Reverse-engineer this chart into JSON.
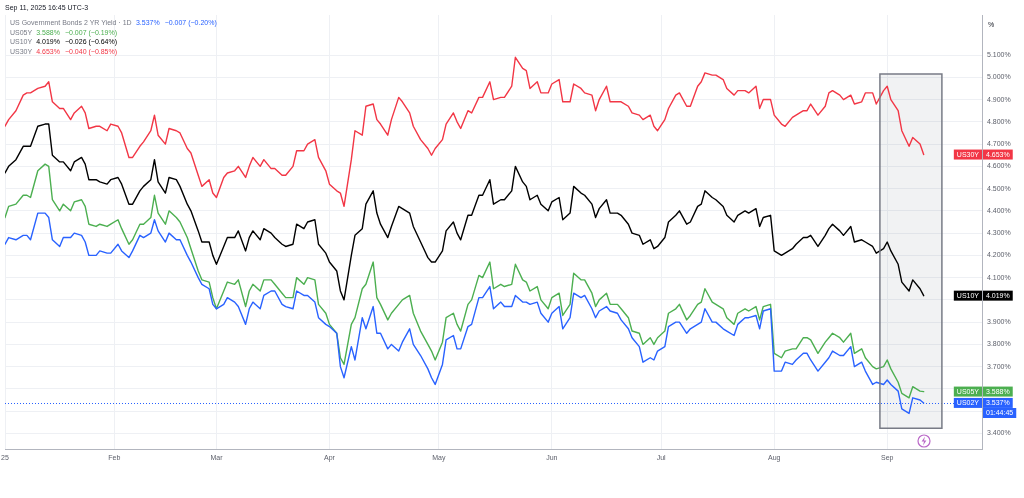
{
  "chart_data": {
    "type": "line",
    "title": "Sep 11, 2025 16:45 UTC-3",
    "ylabel": "%",
    "x": [
      "2025-01-02",
      "2025-01-03",
      "2025-01-05",
      "2025-01-07",
      "2025-01-08",
      "2025-01-09",
      "2025-01-11",
      "2025-01-13",
      "2025-01-14",
      "2025-01-15",
      "2025-01-17",
      "2025-01-18",
      "2025-01-20",
      "2025-01-21",
      "2025-01-23",
      "2025-01-24",
      "2025-01-25",
      "2025-01-27",
      "2025-01-28",
      "2025-01-30",
      "2025-01-31",
      "2025-02-02",
      "2025-02-03",
      "2025-02-05",
      "2025-02-06",
      "2025-02-08",
      "2025-02-09",
      "2025-02-11",
      "2025-02-12",
      "2025-02-13",
      "2025-02-15",
      "2025-02-16",
      "2025-02-18",
      "2025-02-19",
      "2025-02-21",
      "2025-02-22",
      "2025-02-24",
      "2025-02-25",
      "2025-02-27",
      "2025-02-28",
      "2025-03-01",
      "2025-03-03",
      "2025-03-04",
      "2025-03-06",
      "2025-03-07",
      "2025-03-09",
      "2025-03-10",
      "2025-03-11",
      "2025-03-13",
      "2025-03-14",
      "2025-03-16",
      "2025-03-17",
      "2025-03-19",
      "2025-03-20",
      "2025-03-22",
      "2025-03-23",
      "2025-03-25",
      "2025-03-26",
      "2025-03-28",
      "2025-03-29",
      "2025-03-31",
      "2025-04-01",
      "2025-04-03",
      "2025-04-04",
      "2025-04-05",
      "2025-04-07",
      "2025-04-08",
      "2025-04-10",
      "2025-04-11",
      "2025-04-13",
      "2025-04-14",
      "2025-04-15",
      "2025-04-17",
      "2025-04-18",
      "2025-04-20",
      "2025-04-21",
      "2025-04-23",
      "2025-04-24",
      "2025-04-26",
      "2025-04-28",
      "2025-04-29",
      "2025-04-30",
      "2025-05-02",
      "2025-05-03",
      "2025-05-05",
      "2025-05-06",
      "2025-05-07",
      "2025-05-09",
      "2025-05-10",
      "2025-05-12",
      "2025-05-13",
      "2025-05-15",
      "2025-05-16",
      "2025-05-18",
      "2025-05-19",
      "2025-05-21",
      "2025-05-22",
      "2025-05-24",
      "2025-05-25",
      "2025-05-26",
      "2025-05-28",
      "2025-05-29",
      "2025-05-31",
      "2025-06-01",
      "2025-06-03",
      "2025-06-04",
      "2025-06-06",
      "2025-06-07",
      "2025-06-09",
      "2025-06-10",
      "2025-06-12",
      "2025-06-13",
      "2025-06-14",
      "2025-06-16",
      "2025-06-17",
      "2025-06-19",
      "2025-06-20",
      "2025-06-22",
      "2025-06-23",
      "2025-06-25",
      "2025-06-26",
      "2025-06-28",
      "2025-06-29",
      "2025-06-30",
      "2025-07-02",
      "2025-07-03",
      "2025-07-05",
      "2025-07-06",
      "2025-07-08",
      "2025-07-09",
      "2025-07-11",
      "2025-07-12",
      "2025-07-13",
      "2025-07-15",
      "2025-07-16",
      "2025-07-18",
      "2025-07-19",
      "2025-07-21",
      "2025-07-22",
      "2025-07-24",
      "2025-07-25",
      "2025-07-27",
      "2025-07-28",
      "2025-07-29",
      "2025-07-31",
      "2025-08-01",
      "2025-08-03",
      "2025-08-04",
      "2025-08-06",
      "2025-08-07",
      "2025-08-09",
      "2025-08-10",
      "2025-08-11",
      "2025-08-13",
      "2025-08-15",
      "2025-08-16",
      "2025-08-17",
      "2025-08-19",
      "2025-08-20",
      "2025-08-22",
      "2025-08-23",
      "2025-08-25",
      "2025-08-26",
      "2025-08-28",
      "2025-08-29",
      "2025-08-31",
      "2025-09-01",
      "2025-09-02",
      "2025-09-04",
      "2025-09-05",
      "2025-09-07",
      "2025-09-08",
      "2025-09-10",
      "2025-09-11"
    ],
    "xlim": [
      "2025-01-02",
      "2025-09-27"
    ],
    "xticks": [
      {
        "value": "2025-01-02",
        "label": "25"
      },
      {
        "value": "2025-02-01",
        "label": "Feb"
      },
      {
        "value": "2025-03-01",
        "label": "Mar"
      },
      {
        "value": "2025-04-01",
        "label": "Apr"
      },
      {
        "value": "2025-05-01",
        "label": "May"
      },
      {
        "value": "2025-06-01",
        "label": "Jun"
      },
      {
        "value": "2025-07-01",
        "label": "Jul"
      },
      {
        "value": "2025-08-01",
        "label": "Aug"
      },
      {
        "value": "2025-09-01",
        "label": "Sep"
      }
    ],
    "ylim": [
      3.33,
      5.28
    ],
    "yticks": [
      {
        "value": 3.4,
        "label": "3.400%"
      },
      {
        "value": 3.5,
        "label": null
      },
      {
        "value": 3.6,
        "label": null
      },
      {
        "value": 3.7,
        "label": "3.700%"
      },
      {
        "value": 3.8,
        "label": "3.800%"
      },
      {
        "value": 3.9,
        "label": "3.900%"
      },
      {
        "value": 4.0,
        "label": null
      },
      {
        "value": 4.1,
        "label": "4.100%"
      },
      {
        "value": 4.2,
        "label": "4.200%"
      },
      {
        "value": 4.3,
        "label": "4.300%"
      },
      {
        "value": 4.4,
        "label": "4.400%"
      },
      {
        "value": 4.5,
        "label": "4.500%"
      },
      {
        "value": 4.6,
        "label": "4.600%"
      },
      {
        "value": 4.7,
        "label": "4.700%"
      },
      {
        "value": 4.8,
        "label": "4.800%"
      },
      {
        "value": 4.9,
        "label": "4.900%"
      },
      {
        "value": 5.0,
        "label": "5.000%"
      },
      {
        "value": 5.1,
        "label": "5.100%"
      }
    ],
    "grid": true,
    "legend": "right",
    "series": [
      {
        "name": "US02Y",
        "color": "#2962ff",
        "values": [
          4.25,
          4.28,
          4.27,
          4.29,
          4.29,
          4.27,
          4.39,
          4.39,
          4.37,
          4.27,
          4.24,
          4.28,
          4.28,
          4.3,
          4.29,
          4.26,
          4.2,
          4.2,
          4.22,
          4.21,
          4.21,
          4.25,
          4.22,
          4.19,
          4.22,
          4.29,
          4.28,
          4.3,
          4.36,
          4.31,
          4.26,
          4.3,
          4.27,
          4.27,
          4.2,
          4.17,
          4.1,
          4.07,
          4.05,
          3.98,
          3.96,
          3.98,
          4.01,
          3.99,
          3.97,
          3.89,
          3.96,
          3.99,
          3.96,
          4.02,
          4.04,
          4.04,
          3.98,
          3.97,
          3.96,
          4.04,
          4.02,
          4.02,
          3.99,
          3.92,
          3.89,
          3.88,
          3.85,
          3.7,
          3.65,
          3.79,
          3.73,
          3.92,
          3.87,
          3.97,
          3.85,
          3.85,
          3.78,
          3.8,
          3.77,
          3.81,
          3.87,
          3.8,
          3.75,
          3.69,
          3.65,
          3.62,
          3.71,
          3.82,
          3.84,
          3.78,
          3.78,
          3.88,
          3.89,
          4.01,
          4.01,
          4.06,
          3.96,
          3.99,
          3.97,
          3.97,
          4.02,
          3.99,
          3.99,
          3.98,
          3.99,
          3.94,
          3.9,
          3.94,
          3.97,
          3.87,
          3.92,
          4.03,
          4.01,
          4.02,
          3.96,
          3.92,
          3.95,
          3.97,
          3.95,
          3.94,
          3.91,
          3.87,
          3.83,
          3.79,
          3.72,
          3.74,
          3.73,
          3.77,
          3.79,
          3.88,
          3.9,
          3.9,
          3.85,
          3.87,
          3.89,
          3.9,
          3.96,
          3.9,
          3.9,
          3.87,
          3.86,
          3.84,
          3.89,
          3.92,
          3.92,
          3.93,
          3.87,
          3.95,
          3.96,
          3.68,
          3.68,
          3.72,
          3.71,
          3.73,
          3.76,
          3.76,
          3.73,
          3.68,
          3.72,
          3.74,
          3.77,
          3.75,
          3.75,
          3.79,
          3.7,
          3.72,
          3.68,
          3.62,
          3.63,
          3.62,
          3.64,
          3.62,
          3.59,
          3.51,
          3.49,
          3.56,
          3.55,
          3.537
        ]
      },
      {
        "name": "US05Y",
        "color": "#4caf50",
        "values": [
          4.37,
          4.42,
          4.43,
          4.47,
          4.47,
          4.46,
          4.58,
          4.61,
          4.6,
          4.45,
          4.4,
          4.43,
          4.4,
          4.44,
          4.45,
          4.42,
          4.34,
          4.33,
          4.34,
          4.33,
          4.34,
          4.36,
          4.32,
          4.25,
          4.27,
          4.34,
          4.34,
          4.37,
          4.47,
          4.39,
          4.34,
          4.4,
          4.37,
          4.35,
          4.28,
          4.23,
          4.13,
          4.09,
          4.08,
          4.01,
          3.96,
          4.04,
          4.08,
          4.07,
          4.09,
          3.97,
          4.04,
          4.07,
          4.04,
          4.09,
          4.09,
          4.07,
          4.03,
          4.01,
          4.01,
          4.1,
          4.07,
          4.1,
          4.09,
          3.98,
          3.94,
          3.89,
          3.85,
          3.74,
          3.71,
          3.89,
          3.92,
          4.05,
          4.07,
          4.17,
          4.01,
          3.98,
          3.91,
          3.94,
          3.98,
          4.0,
          4.02,
          3.94,
          3.86,
          3.8,
          3.77,
          3.73,
          3.81,
          3.92,
          3.94,
          3.89,
          3.86,
          3.98,
          4.0,
          4.11,
          4.1,
          4.17,
          4.05,
          4.07,
          4.06,
          4.07,
          4.16,
          4.09,
          4.08,
          4.04,
          4.06,
          4.0,
          3.96,
          4.01,
          4.03,
          3.93,
          3.98,
          4.12,
          4.09,
          4.09,
          4.03,
          3.97,
          4.0,
          4.03,
          3.98,
          3.98,
          3.96,
          3.92,
          3.86,
          3.85,
          3.8,
          3.83,
          3.8,
          3.83,
          3.86,
          3.94,
          3.96,
          3.98,
          3.91,
          3.93,
          3.98,
          3.99,
          4.05,
          3.99,
          3.98,
          3.96,
          3.92,
          3.89,
          3.94,
          3.96,
          3.95,
          3.97,
          3.91,
          3.97,
          3.98,
          3.76,
          3.74,
          3.77,
          3.78,
          3.78,
          3.83,
          3.83,
          3.82,
          3.76,
          3.81,
          3.83,
          3.85,
          3.83,
          3.81,
          3.85,
          3.76,
          3.78,
          3.74,
          3.7,
          3.69,
          3.7,
          3.73,
          3.69,
          3.63,
          3.58,
          3.56,
          3.61,
          3.59,
          3.588
        ]
      },
      {
        "name": "US10Y",
        "color": "#000000",
        "values": [
          4.57,
          4.6,
          4.63,
          4.69,
          4.69,
          4.69,
          4.78,
          4.79,
          4.79,
          4.65,
          4.62,
          4.62,
          4.58,
          4.62,
          4.64,
          4.61,
          4.54,
          4.54,
          4.53,
          4.52,
          4.54,
          4.55,
          4.52,
          4.43,
          4.43,
          4.49,
          4.51,
          4.54,
          4.63,
          4.53,
          4.48,
          4.55,
          4.54,
          4.51,
          4.43,
          4.4,
          4.31,
          4.26,
          4.26,
          4.2,
          4.16,
          4.24,
          4.28,
          4.28,
          4.31,
          4.22,
          4.28,
          4.31,
          4.27,
          4.32,
          4.3,
          4.28,
          4.25,
          4.24,
          4.25,
          4.34,
          4.32,
          4.35,
          4.36,
          4.25,
          4.21,
          4.17,
          4.13,
          4.04,
          4.0,
          4.2,
          4.29,
          4.32,
          4.43,
          4.49,
          4.39,
          4.34,
          4.28,
          4.33,
          4.42,
          4.41,
          4.39,
          4.33,
          4.26,
          4.19,
          4.17,
          4.17,
          4.22,
          4.31,
          4.35,
          4.3,
          4.27,
          4.38,
          4.38,
          4.47,
          4.47,
          4.54,
          4.43,
          4.45,
          4.45,
          4.49,
          4.6,
          4.53,
          4.51,
          4.45,
          4.47,
          4.43,
          4.4,
          4.44,
          4.46,
          4.36,
          4.39,
          4.51,
          4.48,
          4.47,
          4.43,
          4.37,
          4.41,
          4.45,
          4.39,
          4.39,
          4.38,
          4.34,
          4.3,
          4.29,
          4.25,
          4.27,
          4.23,
          4.24,
          4.28,
          4.35,
          4.38,
          4.4,
          4.34,
          4.35,
          4.42,
          4.43,
          4.49,
          4.46,
          4.45,
          4.42,
          4.38,
          4.35,
          4.38,
          4.4,
          4.39,
          4.41,
          4.33,
          4.37,
          4.38,
          4.22,
          4.2,
          4.21,
          4.23,
          4.25,
          4.28,
          4.28,
          4.29,
          4.24,
          4.29,
          4.32,
          4.34,
          4.31,
          4.29,
          4.33,
          4.26,
          4.27,
          4.26,
          4.24,
          4.21,
          4.23,
          4.26,
          4.22,
          4.16,
          4.08,
          4.04,
          4.09,
          4.05,
          4.019
        ]
      },
      {
        "name": "US30Y",
        "color": "#f23645",
        "values": [
          4.78,
          4.81,
          4.85,
          4.92,
          4.93,
          4.93,
          4.95,
          4.96,
          4.98,
          4.89,
          4.86,
          4.86,
          4.81,
          4.84,
          4.87,
          4.84,
          4.77,
          4.78,
          4.78,
          4.76,
          4.79,
          4.78,
          4.75,
          4.64,
          4.64,
          4.69,
          4.71,
          4.76,
          4.83,
          4.74,
          4.7,
          4.77,
          4.76,
          4.75,
          4.68,
          4.66,
          4.56,
          4.51,
          4.54,
          4.48,
          4.46,
          4.55,
          4.57,
          4.58,
          4.6,
          4.55,
          4.6,
          4.64,
          4.6,
          4.63,
          4.59,
          4.59,
          4.56,
          4.56,
          4.6,
          4.67,
          4.67,
          4.7,
          4.72,
          4.64,
          4.58,
          4.52,
          4.49,
          4.48,
          4.42,
          4.63,
          4.76,
          4.74,
          4.87,
          4.88,
          4.81,
          4.79,
          4.74,
          4.81,
          4.91,
          4.89,
          4.84,
          4.78,
          4.72,
          4.68,
          4.65,
          4.68,
          4.72,
          4.79,
          4.84,
          4.8,
          4.77,
          4.85,
          4.84,
          4.91,
          4.91,
          4.98,
          4.9,
          4.91,
          4.91,
          4.96,
          5.09,
          5.04,
          5.03,
          4.95,
          4.98,
          4.93,
          4.93,
          4.97,
          4.99,
          4.89,
          4.89,
          4.97,
          4.95,
          4.93,
          4.92,
          4.85,
          4.9,
          4.96,
          4.89,
          4.89,
          4.89,
          4.87,
          4.84,
          4.83,
          4.81,
          4.83,
          4.78,
          4.76,
          4.81,
          4.86,
          4.92,
          4.93,
          4.87,
          4.87,
          4.96,
          4.98,
          5.02,
          5.01,
          5.01,
          4.99,
          4.95,
          4.92,
          4.94,
          4.94,
          4.93,
          4.96,
          4.86,
          4.9,
          4.9,
          4.83,
          4.79,
          4.78,
          4.82,
          4.83,
          4.85,
          4.85,
          4.88,
          4.83,
          4.87,
          4.93,
          4.94,
          4.92,
          4.9,
          4.92,
          4.88,
          4.89,
          4.93,
          4.93,
          4.88,
          4.94,
          4.96,
          4.9,
          4.85,
          4.76,
          4.69,
          4.73,
          4.7,
          4.653
        ]
      }
    ],
    "ref_lines": [
      {
        "axis": "y",
        "value": 3.537,
        "color": "#2962ff",
        "line_style": "dotted"
      }
    ],
    "bands": [
      {
        "axis": "x",
        "from": "2025-08-30",
        "to": "2025-09-16",
        "color": "#787b86"
      }
    ],
    "annotations": [
      "US Government Bonds 2 YR Yield · 1D",
      "3.537%",
      "−0.007 (−0.20%)",
      "US05Y",
      "3.588%",
      "−0.007 (−0.19%)",
      "US10Y",
      "4.019%",
      "−0.026 (−0.64%)",
      "US30Y",
      "4.653%",
      "−0.040 (−0.85%)",
      "3.537%",
      "3.588%",
      "4.019%",
      "4.653%",
      "01:44:45"
    ]
  }
}
